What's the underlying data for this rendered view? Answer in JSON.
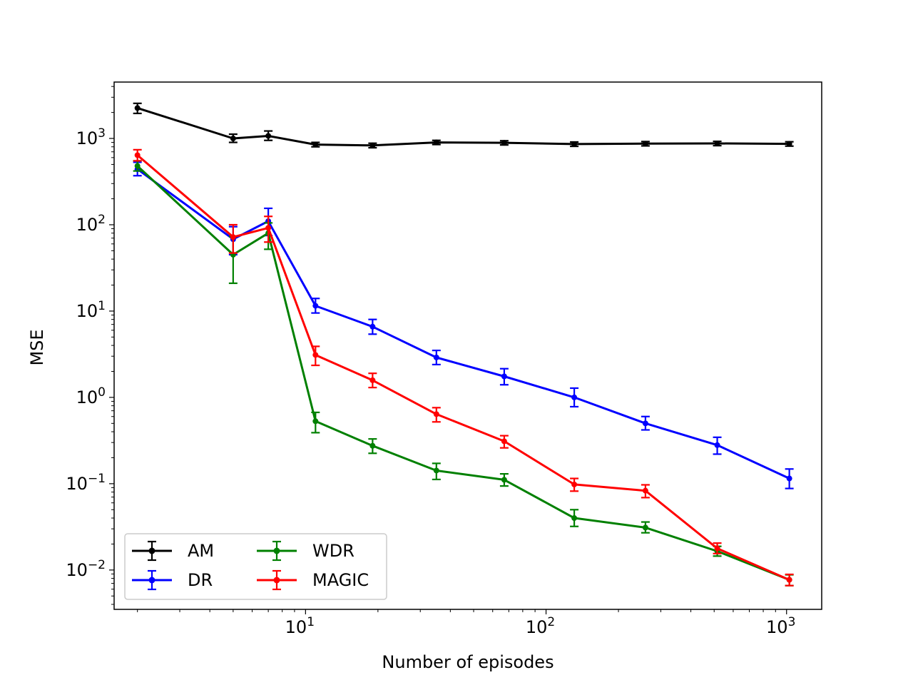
{
  "chart_data": {
    "type": "line",
    "title": "",
    "xlabel": "Number of episodes",
    "ylabel": "MSE",
    "xscale": "log",
    "yscale": "log",
    "xlim": [
      1.6,
      1400
    ],
    "ylim": [
      0.0035,
      4500
    ],
    "grid": false,
    "legend_position": "lower-left",
    "x_ticks": [
      {
        "value": 10,
        "base": "10",
        "exp": "1"
      },
      {
        "value": 100,
        "base": "10",
        "exp": "2"
      },
      {
        "value": 1000,
        "base": "10",
        "exp": "3"
      }
    ],
    "y_ticks": [
      {
        "value": 0.01,
        "base": "10",
        "exp": "−2"
      },
      {
        "value": 0.1,
        "base": "10",
        "exp": "−1"
      },
      {
        "value": 1,
        "base": "10",
        "exp": "0"
      },
      {
        "value": 10,
        "base": "10",
        "exp": "1"
      },
      {
        "value": 100,
        "base": "10",
        "exp": "2"
      },
      {
        "value": 1000,
        "base": "10",
        "exp": "3"
      }
    ],
    "x": [
      2,
      5,
      7,
      11,
      19,
      35,
      67,
      131,
      259,
      515,
      1027
    ],
    "series": [
      {
        "name": "AM",
        "color": "#000000",
        "values": [
          2250,
          1000,
          1070,
          850,
          830,
          900,
          890,
          860,
          870,
          875,
          865
        ],
        "err_low": [
          1950,
          900,
          950,
          800,
          780,
          850,
          840,
          810,
          820,
          825,
          815
        ],
        "err_high": [
          2550,
          1120,
          1220,
          900,
          880,
          950,
          940,
          910,
          920,
          925,
          915
        ]
      },
      {
        "name": "DR",
        "color": "#0000ff",
        "values": [
          440,
          68,
          110,
          11.5,
          6.6,
          2.9,
          1.75,
          1.0,
          0.5,
          0.28,
          0.115
        ],
        "err_low": [
          370,
          45,
          75,
          9.5,
          5.4,
          2.4,
          1.4,
          0.78,
          0.42,
          0.22,
          0.088
        ],
        "err_high": [
          530,
          95,
          155,
          14,
          8.0,
          3.5,
          2.15,
          1.28,
          0.6,
          0.345,
          0.148
        ]
      },
      {
        "name": "WDR",
        "color": "#008000",
        "values": [
          480,
          45,
          80,
          0.53,
          0.275,
          0.142,
          0.111,
          0.04,
          0.031,
          0.0165,
          0.0077
        ],
        "err_low": [
          420,
          21,
          52,
          0.39,
          0.225,
          0.112,
          0.094,
          0.032,
          0.027,
          0.0145,
          0.0066
        ],
        "err_high": [
          550,
          73,
          105,
          0.67,
          0.33,
          0.172,
          0.13,
          0.05,
          0.036,
          0.0188,
          0.0088
        ]
      },
      {
        "name": "MAGIC",
        "color": "#ff0000",
        "values": [
          640,
          72,
          92,
          3.1,
          1.58,
          0.64,
          0.31,
          0.098,
          0.083,
          0.0178,
          0.0077
        ],
        "err_low": [
          550,
          47,
          63,
          2.35,
          1.3,
          0.52,
          0.26,
          0.082,
          0.069,
          0.0155,
          0.0066
        ],
        "err_high": [
          740,
          100,
          125,
          3.9,
          1.9,
          0.76,
          0.36,
          0.115,
          0.097,
          0.0205,
          0.0089
        ]
      }
    ]
  }
}
